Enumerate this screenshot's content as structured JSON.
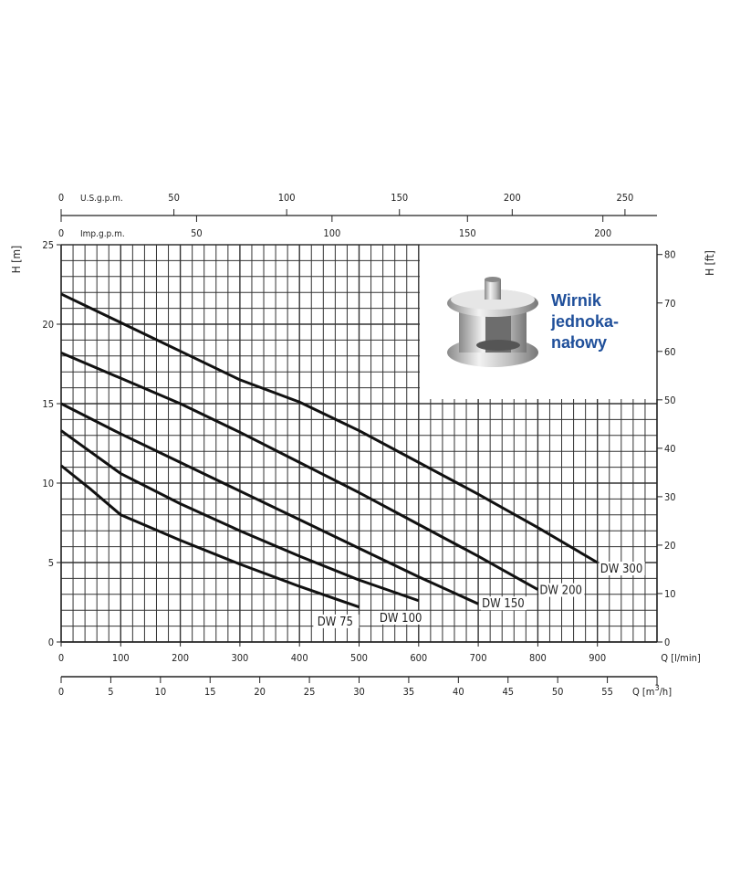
{
  "chart_data": {
    "type": "line",
    "xlabel": "Q [l/min]",
    "ylabel": "H [m]",
    "y2label": "H [ft]",
    "xlim": [
      0,
      1000
    ],
    "ylim": [
      0,
      25
    ],
    "x_ticks": [
      0,
      100,
      200,
      300,
      400,
      500,
      600,
      700,
      800,
      900
    ],
    "y_ticks": [
      0,
      5,
      10,
      15,
      20,
      25
    ],
    "y2_ticks": [
      0,
      10,
      20,
      30,
      40,
      50,
      60,
      70,
      80
    ],
    "grid": true,
    "secondary_axes": {
      "usgpm": {
        "label": "U.S.g.p.m.",
        "ticks": [
          0,
          50,
          100,
          150,
          200,
          250
        ]
      },
      "impgpm": {
        "label": "Imp.g.p.m.",
        "ticks": [
          0,
          50,
          100,
          150,
          200
        ]
      },
      "m3h": {
        "label": "Q [m³/h]",
        "label_parts": [
          "Q [m",
          "3",
          "/h]"
        ],
        "ticks": [
          0,
          5,
          10,
          15,
          20,
          25,
          30,
          35,
          40,
          45,
          50,
          55
        ]
      }
    },
    "series": [
      {
        "name": "DW 300",
        "x": [
          0,
          100,
          200,
          300,
          400,
          500,
          600,
          700,
          800,
          900
        ],
        "y": [
          21.9,
          20.1,
          18.3,
          16.5,
          15.1,
          13.3,
          11.3,
          9.3,
          7.2,
          5.0
        ]
      },
      {
        "name": "DW 200",
        "x": [
          0,
          100,
          200,
          300,
          400,
          500,
          600,
          700,
          800
        ],
        "y": [
          18.2,
          16.6,
          15.0,
          13.2,
          11.3,
          9.4,
          7.4,
          5.4,
          3.3
        ]
      },
      {
        "name": "DW 150",
        "x": [
          0,
          100,
          200,
          300,
          400,
          500,
          600,
          700
        ],
        "y": [
          15.0,
          13.1,
          11.3,
          9.5,
          7.7,
          5.9,
          4.1,
          2.4
        ]
      },
      {
        "name": "DW 100",
        "x": [
          0,
          100,
          200,
          300,
          400,
          500,
          600
        ],
        "y": [
          13.3,
          10.6,
          8.7,
          7.0,
          5.4,
          3.9,
          2.6
        ]
      },
      {
        "name": "DW 75",
        "x": [
          0,
          50,
          100,
          200,
          300,
          400,
          500
        ],
        "y": [
          11.1,
          9.6,
          8.0,
          6.4,
          4.9,
          3.5,
          2.2
        ]
      }
    ],
    "line_color": "#111111",
    "inset": {
      "text_lines": [
        "Wirnik",
        "jednoka-",
        "nałowy"
      ],
      "text_color": "#1f4f9a",
      "image": "impeller-photo"
    }
  }
}
